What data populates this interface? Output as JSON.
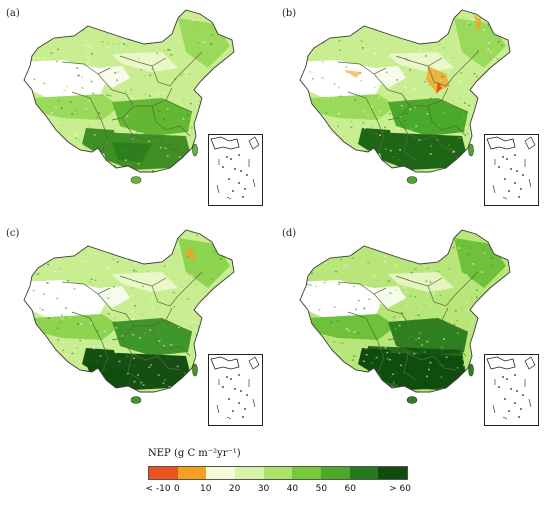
{
  "panels": [
    {
      "id": "a",
      "label": "(a)",
      "variant": "moderate"
    },
    {
      "id": "b",
      "label": "(b)",
      "variant": "north-low"
    },
    {
      "id": "c",
      "label": "(c)",
      "variant": "south-high"
    },
    {
      "id": "d",
      "label": "(d)",
      "variant": "highest"
    }
  ],
  "legend": {
    "title": "NEP (g C m⁻²yr⁻¹)",
    "ticks": [
      "< -10",
      "0",
      "10",
      "20",
      "30",
      "40",
      "50",
      "60",
      "> 60"
    ],
    "colors": [
      "#e8541c",
      "#f5a020",
      "#f4fbd9",
      "#d6f3a8",
      "#a9e36a",
      "#77c93a",
      "#4aa82a",
      "#277a1c",
      "#0f4d0f"
    ]
  }
}
